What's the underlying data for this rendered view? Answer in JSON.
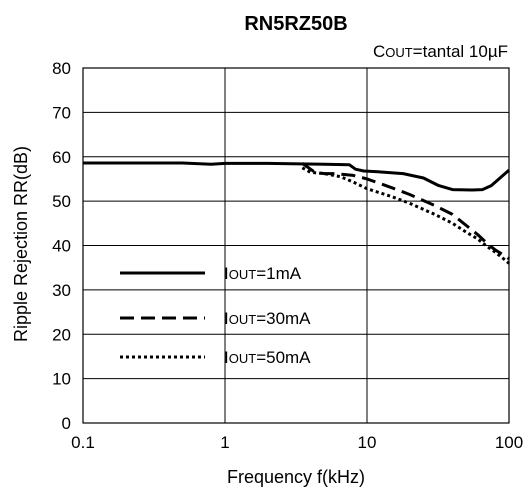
{
  "chart_data": {
    "type": "line",
    "title": "RN5RZ50B",
    "subtitle": "COUT=tantal 10µF",
    "xlabel": "Frequency f(kHz)",
    "ylabel": "Ripple Rejection RR(dB)",
    "x_scale": "log",
    "xlim": [
      0.1,
      100
    ],
    "ylim": [
      0,
      80
    ],
    "x_ticks": [
      0.1,
      1,
      10,
      100
    ],
    "x_tick_labels": [
      "0.1",
      "1",
      "10",
      "100"
    ],
    "y_ticks": [
      0,
      10,
      20,
      30,
      40,
      50,
      60,
      70,
      80
    ],
    "y_tick_labels": [
      "0",
      "10",
      "20",
      "30",
      "40",
      "50",
      "60",
      "70",
      "80"
    ],
    "grid": "major",
    "legend_position": "lower-left",
    "series": [
      {
        "name": "IOUT=1mA",
        "style": "solid",
        "points": [
          [
            0.1,
            58.6
          ],
          [
            0.5,
            58.6
          ],
          [
            0.8,
            58.3
          ],
          [
            1,
            58.5
          ],
          [
            2,
            58.5
          ],
          [
            5,
            58.3
          ],
          [
            7.5,
            58.2
          ],
          [
            8.3,
            57.2
          ],
          [
            9.5,
            56.8
          ],
          [
            12,
            56.6
          ],
          [
            18,
            56.2
          ],
          [
            25,
            55.2
          ],
          [
            32,
            53.5
          ],
          [
            40,
            52.6
          ],
          [
            55,
            52.5
          ],
          [
            65,
            52.6
          ],
          [
            75,
            53.5
          ],
          [
            85,
            55
          ],
          [
            100,
            57
          ]
        ]
      },
      {
        "name": "IOUT=30mA",
        "style": "dashed",
        "points": [
          [
            3.5,
            58.5
          ],
          [
            4.3,
            56.5
          ],
          [
            5,
            56.2
          ],
          [
            6,
            56.2
          ],
          [
            8,
            55.8
          ],
          [
            10,
            55
          ],
          [
            15,
            53
          ],
          [
            20,
            51.5
          ],
          [
            30,
            49
          ],
          [
            40,
            47
          ],
          [
            50,
            44.5
          ],
          [
            60,
            42.5
          ],
          [
            70,
            40.5
          ],
          [
            80,
            39
          ],
          [
            90,
            38
          ],
          [
            100,
            37
          ]
        ]
      },
      {
        "name": "IOUT=50mA",
        "style": "dotted",
        "points": [
          [
            3.5,
            57.5
          ],
          [
            4,
            56.5
          ],
          [
            5,
            56.2
          ],
          [
            6.5,
            55.5
          ],
          [
            8,
            54.3
          ],
          [
            10,
            52.8
          ],
          [
            15,
            51
          ],
          [
            20,
            49.5
          ],
          [
            30,
            47
          ],
          [
            40,
            45
          ],
          [
            50,
            43
          ],
          [
            60,
            41.5
          ],
          [
            70,
            39.8
          ],
          [
            80,
            38.5
          ],
          [
            90,
            37.2
          ],
          [
            100,
            36
          ]
        ]
      }
    ]
  }
}
